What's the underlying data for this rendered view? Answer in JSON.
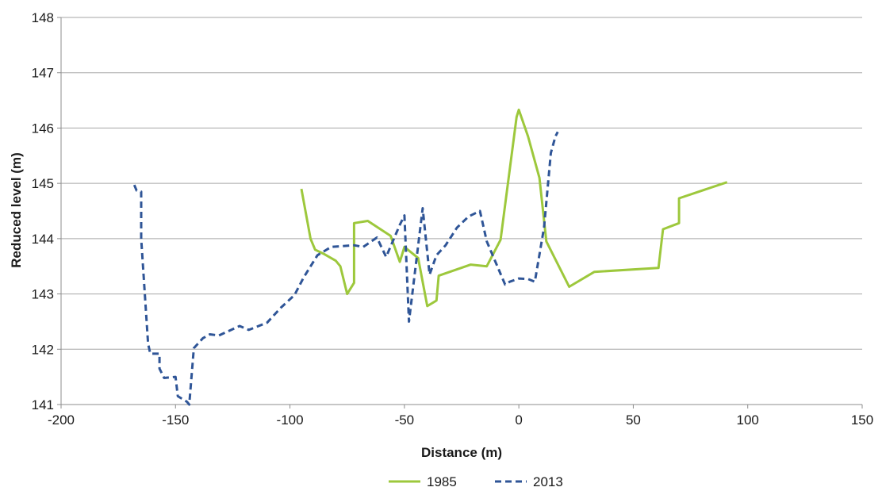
{
  "chart_data": {
    "type": "line",
    "title": "",
    "xlabel": "Distance (m)",
    "ylabel": "Reduced level (m)",
    "xlim": [
      -200,
      150
    ],
    "ylim": [
      141,
      148
    ],
    "x_ticks": [
      -200,
      -150,
      -100,
      -50,
      0,
      50,
      100,
      150
    ],
    "y_ticks": [
      141,
      142,
      143,
      144,
      145,
      146,
      147,
      148
    ],
    "grid": "horizontal",
    "legend_position": "bottom",
    "series": [
      {
        "name": "1985",
        "color": "#9dc83c",
        "dash": "solid",
        "points": [
          [
            -95,
            144.9
          ],
          [
            -91,
            144.0
          ],
          [
            -89,
            143.8
          ],
          [
            -85,
            143.72
          ],
          [
            -80,
            143.6
          ],
          [
            -78,
            143.5
          ],
          [
            -75,
            143.0
          ],
          [
            -72,
            143.2
          ],
          [
            -72,
            144.28
          ],
          [
            -66,
            144.32
          ],
          [
            -56,
            144.05
          ],
          [
            -52,
            143.58
          ],
          [
            -50,
            143.85
          ],
          [
            -44,
            143.65
          ],
          [
            -40,
            142.78
          ],
          [
            -36,
            142.88
          ],
          [
            -35,
            143.33
          ],
          [
            -21,
            143.53
          ],
          [
            -14,
            143.5
          ],
          [
            -8,
            143.98
          ],
          [
            -1,
            146.2
          ],
          [
            0,
            146.33
          ],
          [
            4,
            145.85
          ],
          [
            9,
            145.1
          ],
          [
            12,
            143.95
          ],
          [
            22,
            143.13
          ],
          [
            33,
            143.4
          ],
          [
            61,
            143.47
          ],
          [
            63,
            144.17
          ],
          [
            70,
            144.28
          ],
          [
            70,
            144.73
          ],
          [
            91,
            145.02
          ]
        ]
      },
      {
        "name": "2013",
        "color": "#2f5597",
        "dash": "dashed",
        "points": [
          [
            -168,
            144.97
          ],
          [
            -167,
            144.87
          ],
          [
            -165,
            144.85
          ],
          [
            -165,
            144.0
          ],
          [
            -162,
            142.1
          ],
          [
            -161,
            141.92
          ],
          [
            -157,
            141.92
          ],
          [
            -157,
            141.65
          ],
          [
            -155,
            141.48
          ],
          [
            -150,
            141.5
          ],
          [
            -149,
            141.15
          ],
          [
            -145,
            141.05
          ],
          [
            -144,
            141.0
          ],
          [
            -142,
            142.02
          ],
          [
            -138,
            142.2
          ],
          [
            -135,
            142.27
          ],
          [
            -131,
            142.25
          ],
          [
            -122,
            142.42
          ],
          [
            -118,
            142.35
          ],
          [
            -110,
            142.48
          ],
          [
            -104,
            142.75
          ],
          [
            -98,
            142.98
          ],
          [
            -94,
            143.3
          ],
          [
            -88,
            143.7
          ],
          [
            -82,
            143.85
          ],
          [
            -72,
            143.88
          ],
          [
            -68,
            143.85
          ],
          [
            -62,
            144.02
          ],
          [
            -58,
            143.67
          ],
          [
            -52,
            144.25
          ],
          [
            -50,
            144.42
          ],
          [
            -48,
            142.5
          ],
          [
            -42,
            144.55
          ],
          [
            -39,
            143.35
          ],
          [
            -36,
            143.7
          ],
          [
            -32,
            143.88
          ],
          [
            -27,
            144.2
          ],
          [
            -22,
            144.4
          ],
          [
            -17,
            144.5
          ],
          [
            -14,
            143.95
          ],
          [
            -6,
            143.17
          ],
          [
            -4,
            143.22
          ],
          [
            0,
            143.28
          ],
          [
            4,
            143.27
          ],
          [
            7,
            143.22
          ],
          [
            11,
            144.2
          ],
          [
            14,
            145.55
          ],
          [
            16,
            145.85
          ],
          [
            17,
            145.93
          ]
        ]
      }
    ]
  }
}
